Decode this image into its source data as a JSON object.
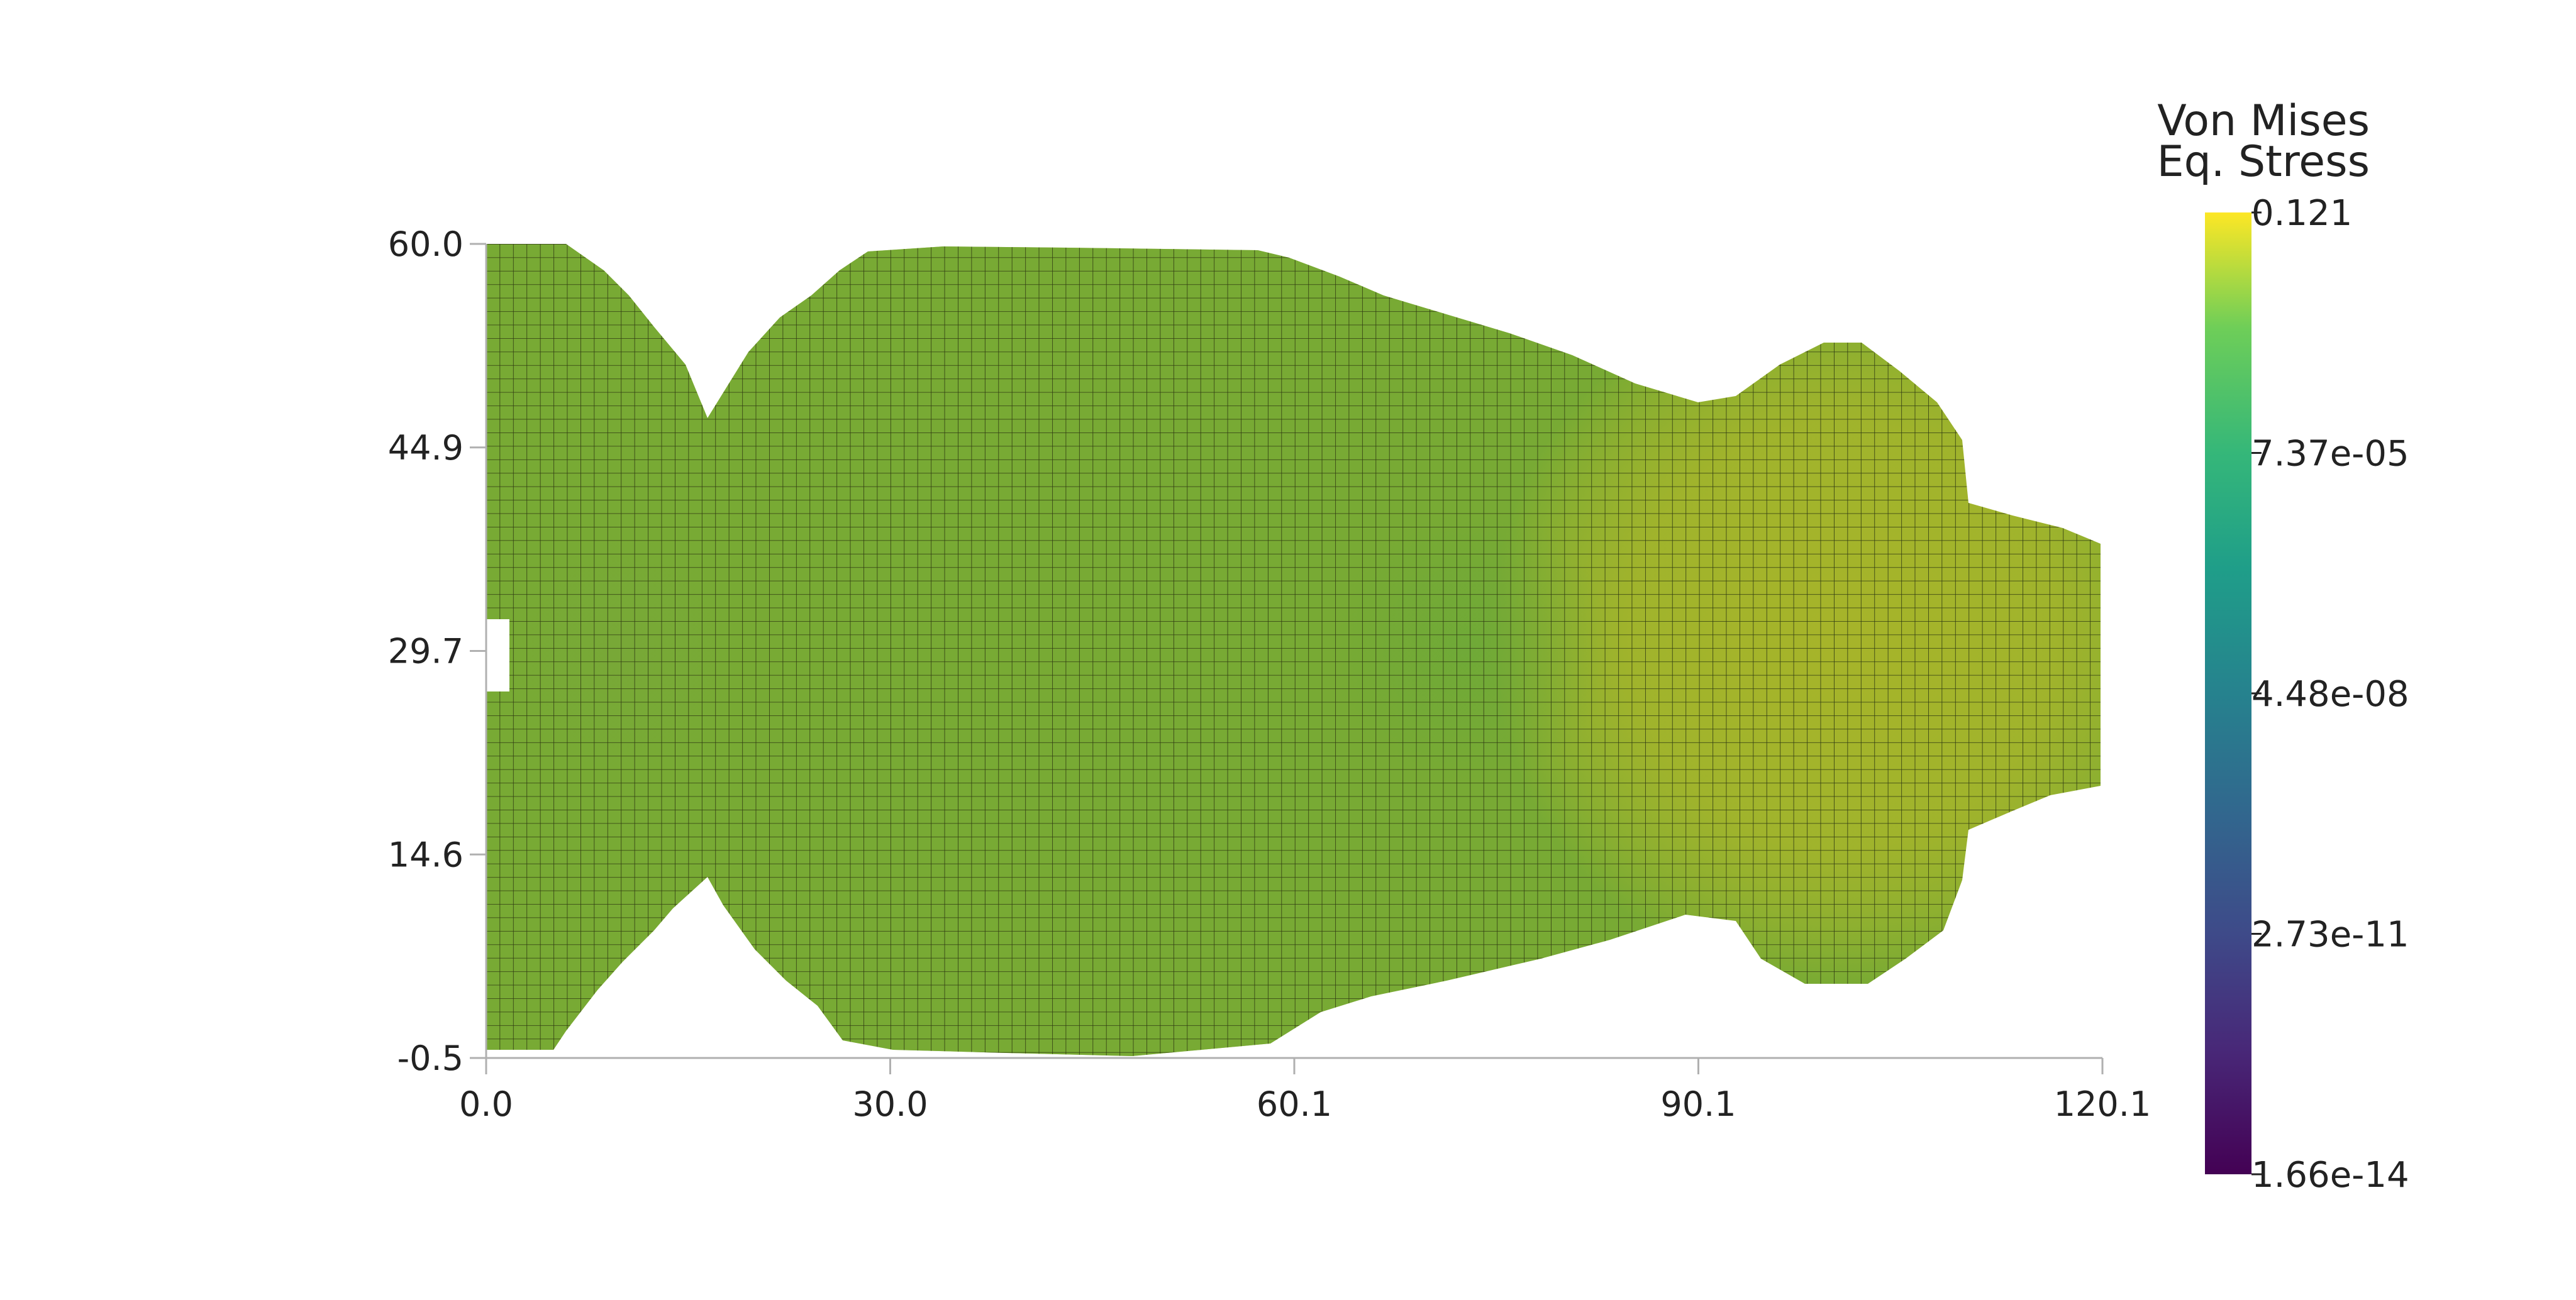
{
  "chart_data": {
    "type": "heatmap",
    "title": "",
    "xlabel": "",
    "ylabel": "",
    "x_ticks": [
      "0.0",
      "30.0",
      "60.1",
      "90.1",
      "120.1"
    ],
    "y_ticks": [
      "60.0",
      "44.9",
      "29.7",
      "14.6",
      "-0.5"
    ],
    "xlim": [
      0.0,
      120.1
    ],
    "ylim": [
      -0.5,
      60.0
    ],
    "grid": false,
    "mesh": {
      "element_size": 1.0,
      "nx": 120,
      "ny": 60,
      "edge_color": "#2f3a12"
    },
    "colorbar": {
      "title_lines": [
        "Von Mises",
        "Eq. Stress"
      ],
      "scale": "log",
      "colormap": "viridis",
      "tick_labels": [
        "0.121",
        "7.37e-05",
        "4.48e-08",
        "2.73e-11",
        "1.66e-14"
      ],
      "placement": "right"
    },
    "field_summary": "Stress field on the remaining solid region of an optimized beam; values lie near the top of the scale (yellow-green), lowest (green) at the right-side lobe and around the left hole edge."
  }
}
